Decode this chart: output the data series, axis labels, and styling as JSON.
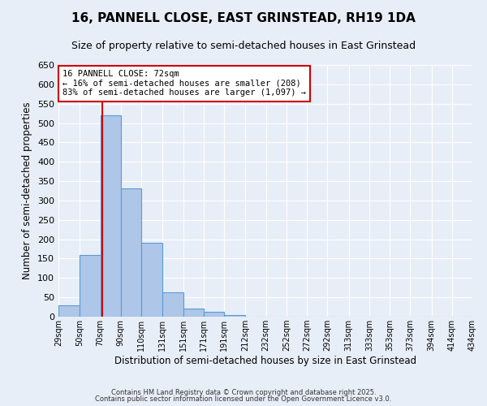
{
  "title": "16, PANNELL CLOSE, EAST GRINSTEAD, RH19 1DA",
  "subtitle": "Size of property relative to semi-detached houses in East Grinstead",
  "xlabel": "Distribution of semi-detached houses by size in East Grinstead",
  "ylabel": "Number of semi-detached properties",
  "bins": [
    29,
    50,
    70,
    90,
    110,
    131,
    151,
    171,
    191,
    212,
    232,
    252,
    272,
    292,
    313,
    333,
    353,
    373,
    394,
    414,
    434
  ],
  "bin_labels": [
    "29sqm",
    "50sqm",
    "70sqm",
    "90sqm",
    "110sqm",
    "131sqm",
    "151sqm",
    "171sqm",
    "191sqm",
    "212sqm",
    "232sqm",
    "252sqm",
    "272sqm",
    "292sqm",
    "313sqm",
    "333sqm",
    "353sqm",
    "373sqm",
    "394sqm",
    "414sqm",
    "434sqm"
  ],
  "counts": [
    30,
    160,
    520,
    332,
    190,
    63,
    22,
    12,
    5,
    1,
    0,
    0,
    0,
    0,
    0,
    0,
    0,
    0,
    0,
    0
  ],
  "ylim": [
    0,
    650
  ],
  "yticks": [
    0,
    50,
    100,
    150,
    200,
    250,
    300,
    350,
    400,
    450,
    500,
    550,
    600,
    650
  ],
  "property_value": 72,
  "property_label": "16 PANNELL CLOSE: 72sqm",
  "smaller_pct": 16,
  "smaller_count": 208,
  "larger_pct": 83,
  "larger_count": 1097,
  "bar_color": "#aec6e8",
  "bar_edge_color": "#5b9bd5",
  "vline_color": "#cc0000",
  "box_edge_color": "#cc0000",
  "bg_color": "#e8eef8",
  "grid_color": "#ffffff",
  "title_fontsize": 11,
  "subtitle_fontsize": 9,
  "footer1": "Contains HM Land Registry data © Crown copyright and database right 2025.",
  "footer2": "Contains public sector information licensed under the Open Government Licence v3.0."
}
